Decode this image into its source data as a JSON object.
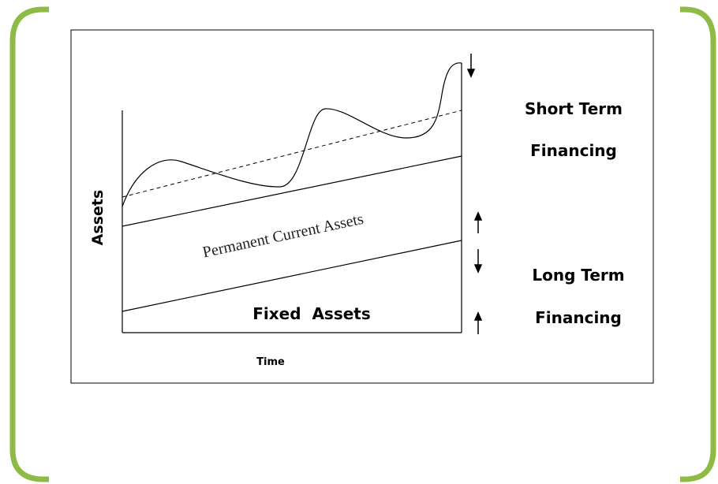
{
  "diagram": {
    "y_axis_label": "Assets",
    "x_axis_label": "Time",
    "bands": {
      "permanent_current": "Permanent Current Assets",
      "fixed": "Fixed  Assets"
    },
    "financing": {
      "short_term": [
        "Short Term",
        "Financing"
      ],
      "long_term": [
        "Long Term",
        "Financing"
      ]
    }
  }
}
